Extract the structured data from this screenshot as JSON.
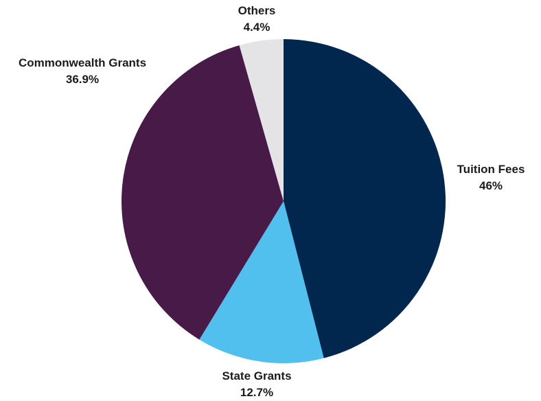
{
  "chart_data": {
    "type": "pie",
    "title": "",
    "legend": "none",
    "start_direction": "top",
    "direction": "clockwise",
    "slices": [
      {
        "label": "Tuition Fees",
        "value": 46,
        "value_label": "46%",
        "color": "#02274f"
      },
      {
        "label": "State Grants",
        "value": 12.7,
        "value_label": "12.7%",
        "color": "#52c0ee"
      },
      {
        "label": "Commonwealth Grants",
        "value": 36.9,
        "value_label": "36.9%",
        "color": "#481a48"
      },
      {
        "label": "Others",
        "value": 4.4,
        "value_label": "4.4%",
        "color": "#e4e4e6"
      }
    ]
  }
}
